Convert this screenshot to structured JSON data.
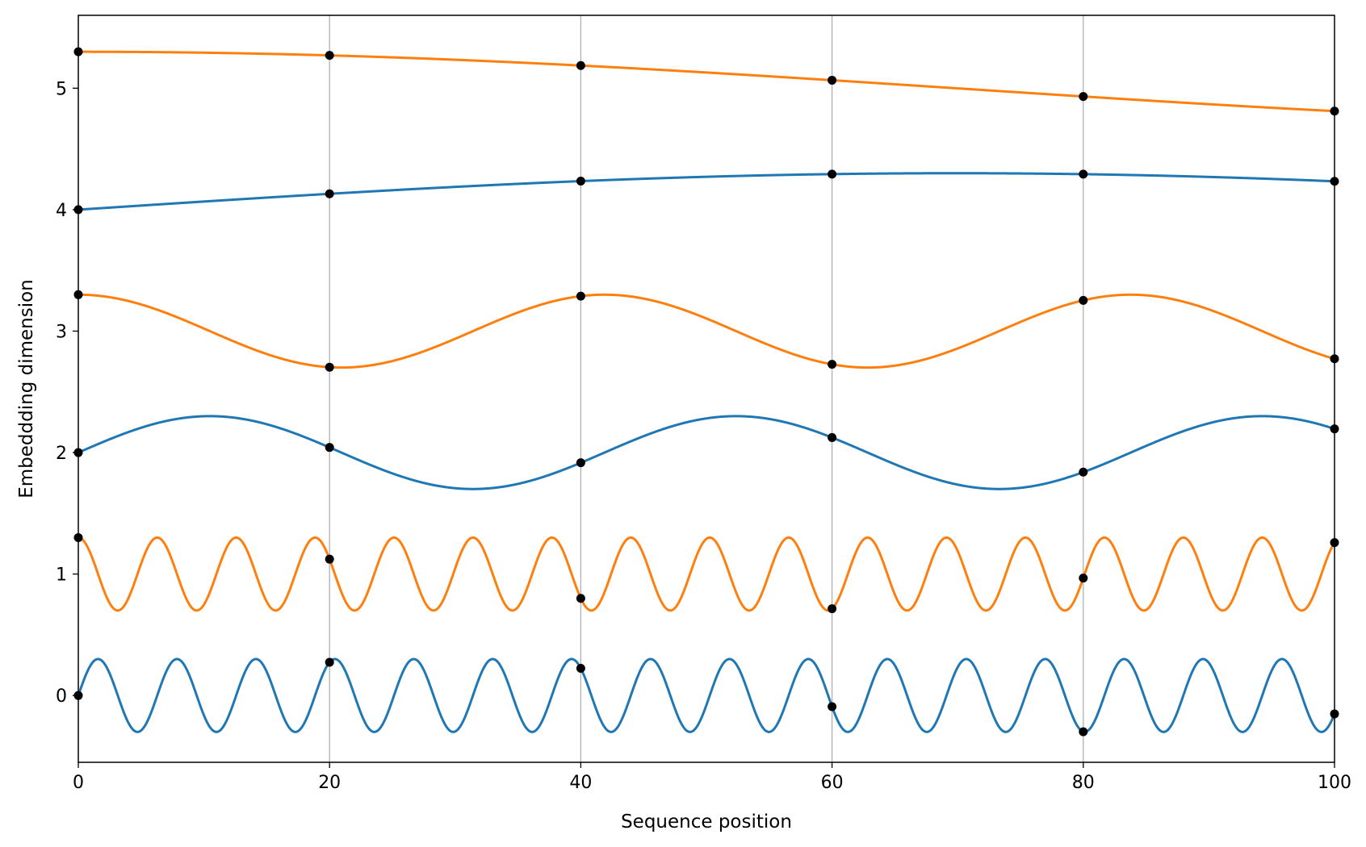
{
  "chart_data": {
    "type": "line",
    "title": "",
    "xlabel": "Sequence position",
    "ylabel": "Embeddding dimension",
    "xlim": [
      0,
      100
    ],
    "ylim": [
      -0.55,
      5.6
    ],
    "x_ticks": [
      0,
      20,
      40,
      60,
      80,
      100
    ],
    "x_tick_labels": [
      "0",
      "20",
      "40",
      "60",
      "80",
      "100"
    ],
    "y_ticks": [
      0,
      1,
      2,
      3,
      4,
      5
    ],
    "y_tick_labels": [
      "0",
      "1",
      "2",
      "3",
      "4",
      "5"
    ],
    "grid": "x-only",
    "legend": "none",
    "marker_color": "#000000",
    "series": [
      {
        "function": "sin",
        "omega": 1.0,
        "amplitude": 0.3,
        "offset": 0,
        "color": "#1f77b4"
      },
      {
        "function": "cos",
        "omega": 1.0,
        "amplitude": 0.3,
        "offset": 1,
        "color": "#ff7f0e"
      },
      {
        "function": "sin",
        "omega": 0.15,
        "amplitude": 0.3,
        "offset": 2,
        "color": "#1f77b4"
      },
      {
        "function": "cos",
        "omega": 0.15,
        "amplitude": 0.3,
        "offset": 3,
        "color": "#ff7f0e"
      },
      {
        "function": "sin",
        "omega": 0.0225,
        "amplitude": 0.3,
        "offset": 4,
        "color": "#1f77b4"
      },
      {
        "function": "cos",
        "omega": 0.0225,
        "amplitude": 0.3,
        "offset": 5,
        "color": "#ff7f0e"
      }
    ],
    "marker_positions": [
      0,
      20,
      40,
      60,
      80,
      100
    ]
  }
}
